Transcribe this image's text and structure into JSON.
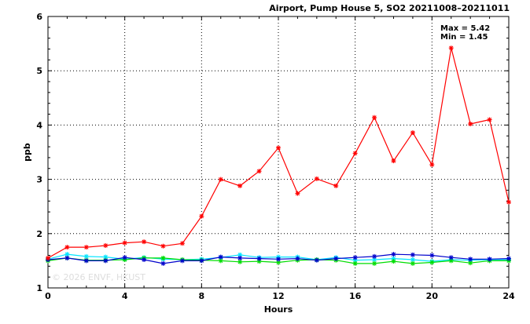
{
  "chart_data": {
    "type": "line",
    "title": "Airport, Pump House 5, SO2 20211008–20211011",
    "xlabel": "Hours",
    "ylabel": "ppb",
    "xlim": [
      0,
      24
    ],
    "ylim": [
      1,
      6
    ],
    "xticks": [
      0,
      4,
      8,
      12,
      16,
      20,
      24
    ],
    "yticks": [
      1,
      2,
      3,
      4,
      5,
      6
    ],
    "grid": true,
    "grid_style": "dotted",
    "annotation_max": "Max = 5.42",
    "annotation_min": "Min = 1.45",
    "watermark": "© 2026  ENVF, HKUST",
    "x": [
      0,
      1,
      2,
      3,
      4,
      5,
      6,
      7,
      8,
      9,
      10,
      11,
      12,
      13,
      14,
      15,
      16,
      17,
      18,
      19,
      20,
      21,
      22,
      23,
      24
    ],
    "series": [
      {
        "color": "#ff0000",
        "marker": "asterisk",
        "values": [
          1.55,
          1.75,
          1.75,
          1.78,
          1.83,
          1.85,
          1.77,
          1.82,
          2.32,
          3.0,
          2.88,
          3.15,
          3.58,
          2.74,
          3.01,
          2.88,
          3.48,
          4.14,
          3.34,
          3.86,
          3.27,
          5.42,
          4.02,
          4.1,
          2.58
        ]
      },
      {
        "color": "#00e5ff",
        "marker": "asterisk",
        "values": [
          1.53,
          1.62,
          1.58,
          1.57,
          1.53,
          1.56,
          1.53,
          1.52,
          1.53,
          1.56,
          1.61,
          1.56,
          1.57,
          1.57,
          1.52,
          1.56,
          1.51,
          1.52,
          1.54,
          1.52,
          1.49,
          1.52,
          1.51,
          1.52,
          1.52
        ]
      },
      {
        "color": "#00dd00",
        "marker": "asterisk",
        "values": [
          1.5,
          1.55,
          1.51,
          1.51,
          1.52,
          1.55,
          1.55,
          1.52,
          1.51,
          1.5,
          1.48,
          1.49,
          1.47,
          1.51,
          1.52,
          1.51,
          1.45,
          1.45,
          1.49,
          1.45,
          1.47,
          1.5,
          1.46,
          1.5,
          1.5
        ]
      },
      {
        "color": "#0000cc",
        "marker": "asterisk",
        "values": [
          1.52,
          1.55,
          1.5,
          1.5,
          1.56,
          1.52,
          1.45,
          1.5,
          1.5,
          1.57,
          1.55,
          1.54,
          1.53,
          1.54,
          1.51,
          1.54,
          1.56,
          1.58,
          1.62,
          1.61,
          1.6,
          1.56,
          1.53,
          1.53,
          1.54
        ]
      }
    ]
  }
}
